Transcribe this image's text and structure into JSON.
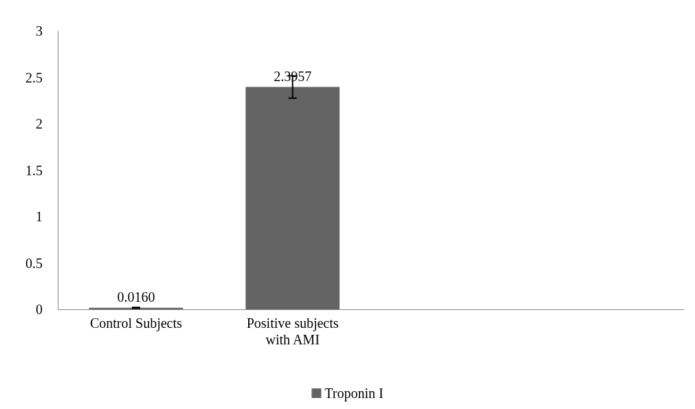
{
  "chart_data": {
    "type": "bar",
    "categories": [
      "Control Subjects",
      "Positive subjects\nwith AMI",
      null,
      null
    ],
    "series": [
      {
        "name": "Troponin I",
        "color": "#636363",
        "values": [
          0.016,
          2.3957,
          null,
          null
        ],
        "errors": [
          0.005,
          0.12,
          null,
          null
        ]
      }
    ],
    "value_labels": [
      "0.0160",
      "2.3957",
      null,
      null
    ],
    "ylim": [
      0,
      3
    ],
    "yticks": [
      0,
      0.5,
      1,
      1.5,
      2,
      2.5,
      3
    ],
    "grid": false,
    "legend": "bottom"
  }
}
